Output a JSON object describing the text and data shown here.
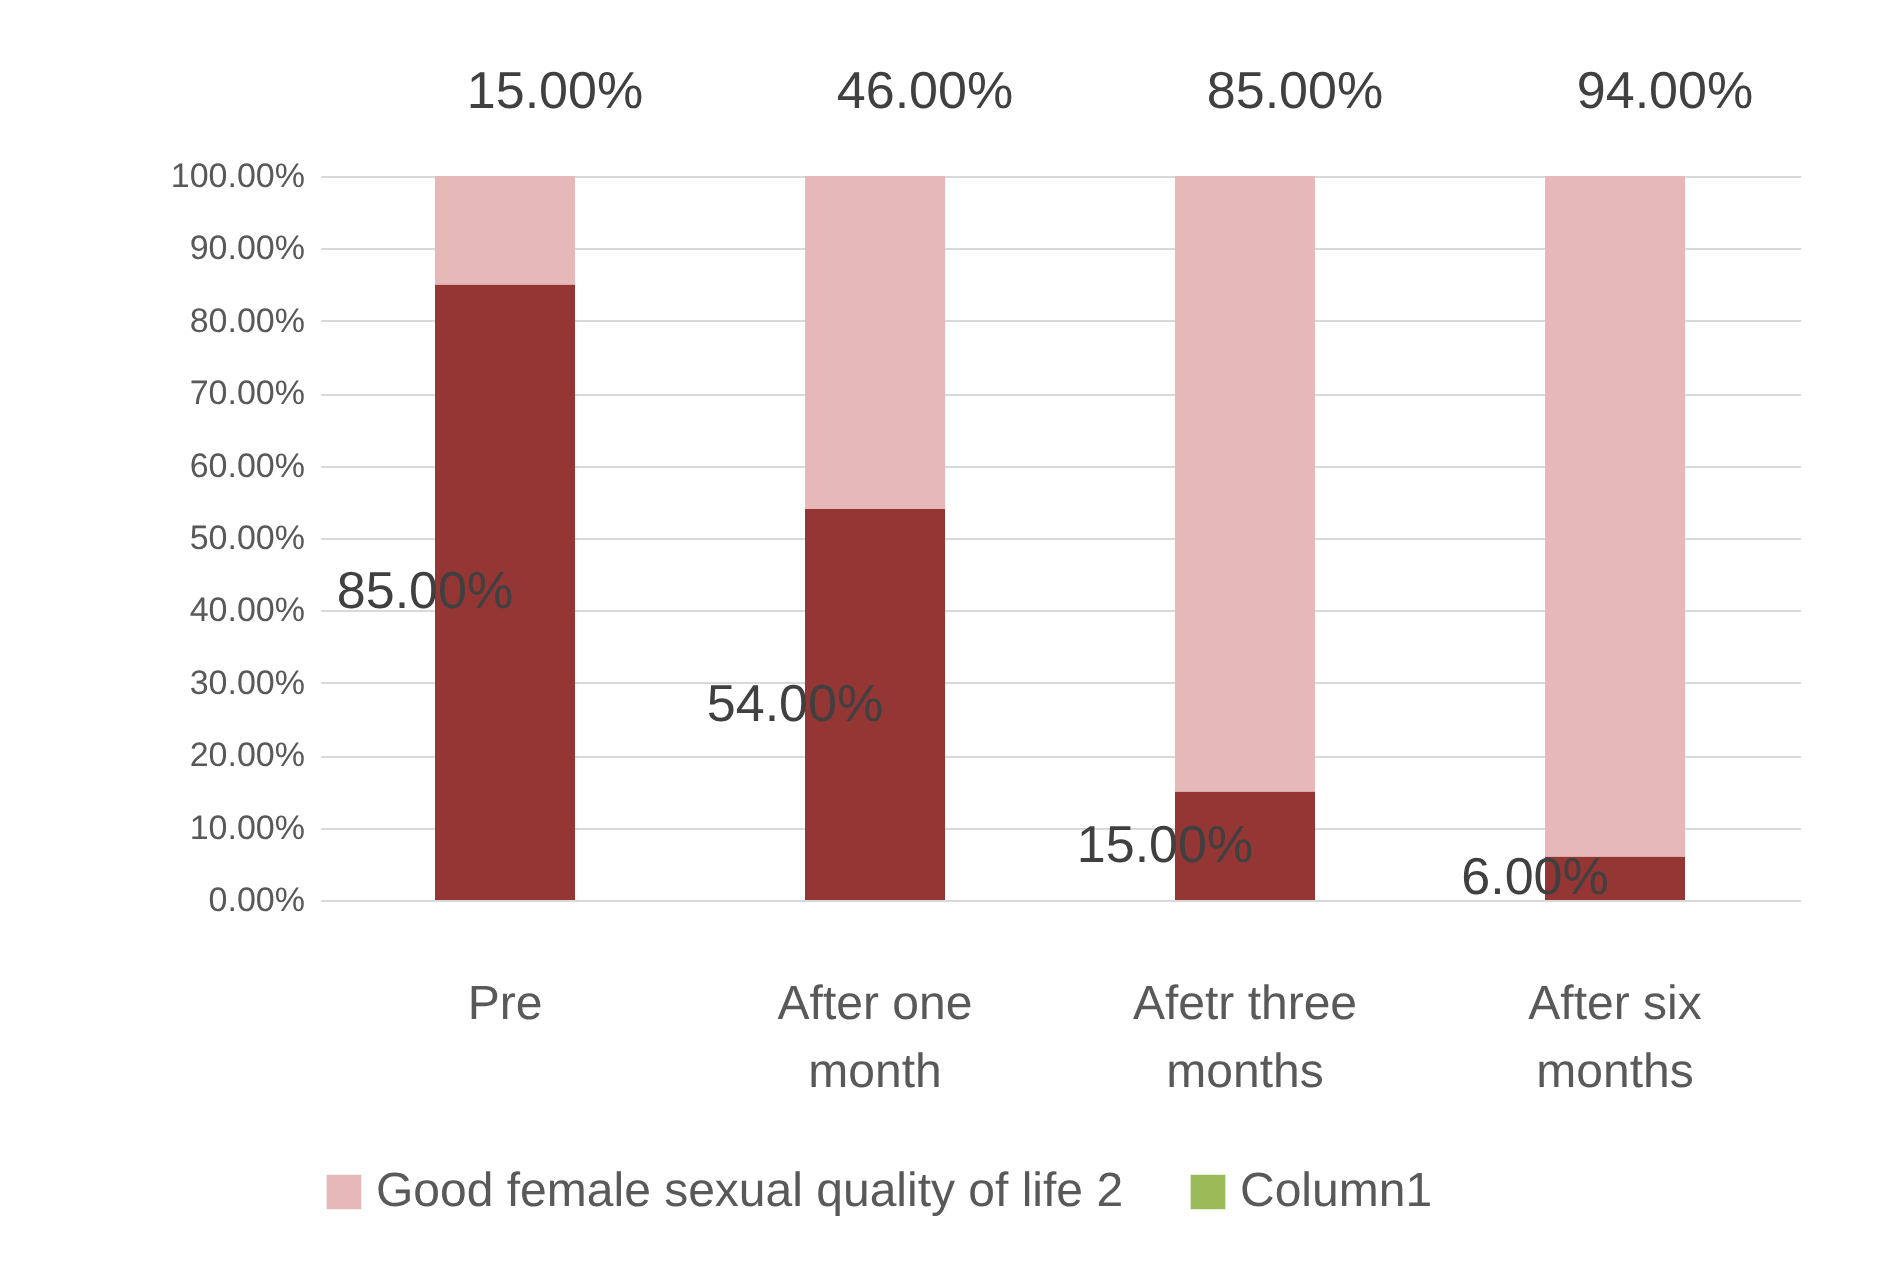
{
  "chart_data": {
    "type": "bar",
    "stacked": true,
    "categories": [
      "Pre",
      "After one month",
      "Afetr three months",
      "After six months"
    ],
    "series": [
      {
        "color": "#943634",
        "values": [
          85,
          54,
          15,
          6
        ],
        "value_labels": [
          "85.00%",
          "54.00%",
          "15.00%",
          "6.00%"
        ]
      },
      {
        "name": "Good female sexual quality of life 2",
        "color": "#e6b9b8",
        "values": [
          15,
          46,
          85,
          94
        ],
        "value_labels": [
          "15.00%",
          "46.00%",
          "85.00%",
          "94.00%"
        ]
      },
      {
        "name": "Column1",
        "color": "#9bbb59",
        "values": [
          null,
          null,
          null,
          null
        ]
      }
    ],
    "ylim": [
      0,
      100
    ],
    "yticks": [
      {
        "value": 0,
        "label": "0.00%"
      },
      {
        "value": 10,
        "label": "10.00%"
      },
      {
        "value": 20,
        "label": "20.00%"
      },
      {
        "value": 30,
        "label": "30.00%"
      },
      {
        "value": 40,
        "label": "40.00%"
      },
      {
        "value": 50,
        "label": "50.00%"
      },
      {
        "value": 60,
        "label": "60.00%"
      },
      {
        "value": 70,
        "label": "70.00%"
      },
      {
        "value": 80,
        "label": "80.00%"
      },
      {
        "value": 90,
        "label": "90.00%"
      },
      {
        "value": 100,
        "label": "100.00%"
      }
    ],
    "grid": "y",
    "legend": "bottom"
  }
}
